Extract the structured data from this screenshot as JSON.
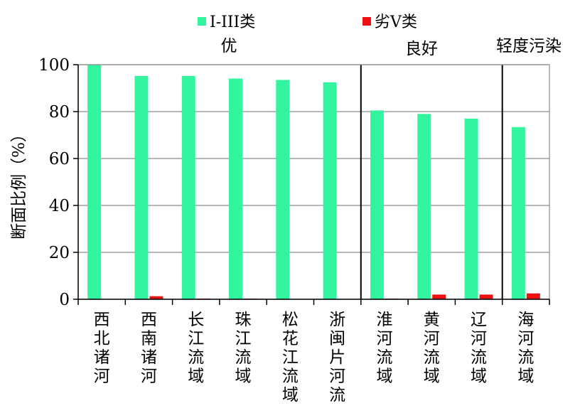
{
  "chart_data": {
    "type": "bar",
    "title": "",
    "xlabel": "",
    "ylabel": "断面比例（%）",
    "ylim": [
      0,
      100
    ],
    "yticks": [
      0,
      20,
      40,
      60,
      80,
      100
    ],
    "grid": true,
    "legend_position": "top",
    "categories": [
      "西北诸河",
      "西南诸河",
      "长江流域",
      "珠江流域",
      "松花江流域",
      "浙闽片河流",
      "淮河流域",
      "黄河流域",
      "辽河流域",
      "海河流域"
    ],
    "series": [
      {
        "name": "I-III类",
        "color": "#33f5a0",
        "values": [
          100,
          95.2,
          95.2,
          94.1,
          93.5,
          92.5,
          80.5,
          79.0,
          77.0,
          73.4
        ]
      },
      {
        "name": "劣V类",
        "color": "#ee1111",
        "values": [
          0,
          1.3,
          0.3,
          0.3,
          0,
          0,
          0.3,
          2.0,
          2.0,
          2.5
        ]
      }
    ],
    "groups": [
      {
        "label": "优",
        "from": 0,
        "to": 5
      },
      {
        "label": "良好",
        "from": 6,
        "to": 8
      },
      {
        "label": "轻度污染",
        "from": 9,
        "to": 9
      }
    ]
  }
}
